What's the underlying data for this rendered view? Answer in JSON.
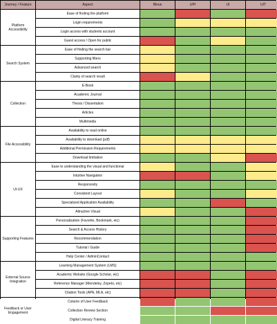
{
  "colors": {
    "G": "#93c572",
    "Y": "#fdeb8c",
    "R": "#d9534f",
    "header": "#c9a8a8"
  },
  "headers": [
    "Journey / Feature",
    "Aspect",
    "Binus",
    "UPI",
    "UI",
    "UIT"
  ],
  "groups": [
    {
      "name": "Platform Accessibility",
      "rows": [
        {
          "aspect": "Ease of finding the platform",
          "ratings": [
            "G",
            "R",
            "G",
            "R"
          ]
        },
        {
          "aspect": "Login requirements",
          "ratings": [
            "G",
            "Y",
            "Y",
            "Y"
          ]
        },
        {
          "aspect": "Login access with students account",
          "ratings": [
            "G",
            "G",
            "G",
            "G"
          ]
        },
        {
          "aspect": "Guest access / Open for public",
          "ratings": [
            "R",
            "G",
            "Y",
            "G"
          ]
        }
      ]
    },
    {
      "name": "Search System",
      "rows": [
        {
          "aspect": "Ease of finding the search bar",
          "ratings": [
            "Y",
            "G",
            "G",
            "G"
          ]
        },
        {
          "aspect": "Supporting filters",
          "ratings": [
            "Y",
            "G",
            "G",
            "G"
          ]
        },
        {
          "aspect": "Advanced search",
          "ratings": [
            "Y",
            "G",
            "G",
            "G"
          ]
        },
        {
          "aspect": "Clarity of search result",
          "ratings": [
            "R",
            "Y",
            "G",
            "G"
          ]
        }
      ]
    },
    {
      "name": "Collection",
      "rows": [
        {
          "aspect": "E-Book",
          "ratings": [
            "G",
            "G",
            "G",
            "G"
          ]
        },
        {
          "aspect": "Academic Journal",
          "ratings": [
            "G",
            "G",
            "G",
            "G"
          ]
        },
        {
          "aspect": "Thesis / Dissertation",
          "ratings": [
            "G",
            "G",
            "G",
            "G"
          ]
        },
        {
          "aspect": "Articles",
          "ratings": [
            "G",
            "G",
            "G",
            "G"
          ]
        },
        {
          "aspect": "Multimedia",
          "ratings": [
            "G",
            "G",
            "G",
            "G"
          ]
        }
      ]
    },
    {
      "name": "File Accessibility",
      "rows": [
        {
          "aspect": "Availability to read online",
          "ratings": [
            "G",
            "G",
            "G",
            "G"
          ]
        },
        {
          "aspect": "Availability to download (pdf)",
          "ratings": [
            "Y",
            "Y",
            "Y",
            "Y"
          ]
        },
        {
          "aspect": "Additional Permission Requirements",
          "ratings": [
            "Y",
            "Y",
            "Y",
            "Y"
          ]
        },
        {
          "aspect": "Download limitation",
          "ratings": [
            "G",
            "G",
            "Y",
            "R"
          ]
        }
      ]
    },
    {
      "name": "UI-UX",
      "rows": [
        {
          "aspect": "Ease to understanding the visual and functional",
          "ratings": [
            "Y",
            "G",
            "G",
            "Y"
          ]
        },
        {
          "aspect": "Intuitive Navigation",
          "ratings": [
            "R",
            "R",
            "G",
            "Y"
          ]
        },
        {
          "aspect": "Responsivity",
          "ratings": [
            "G",
            "G",
            "G",
            "G"
          ]
        },
        {
          "aspect": "Consistent Layout",
          "ratings": [
            "Y",
            "G",
            "G",
            "Y"
          ]
        },
        {
          "aspect": "Specialized Application Availability",
          "ratings": [
            "G",
            "G",
            "R",
            "G"
          ]
        },
        {
          "aspect": "Attractive Visual",
          "ratings": [
            "Y",
            "G",
            "G",
            "R"
          ]
        }
      ]
    },
    {
      "name": "Supporting Features",
      "rows": [
        {
          "aspect": "Personalization (Favorite, Bookmark, etc)",
          "ratings": [
            "G",
            "G",
            "G",
            "R"
          ]
        },
        {
          "aspect": "Search & Access History",
          "ratings": [
            "G",
            "G",
            "G",
            "R"
          ]
        },
        {
          "aspect": "Recommendation",
          "ratings": [
            "G",
            "G",
            "G",
            "R"
          ]
        },
        {
          "aspect": "Tutorial / Guide",
          "ratings": [
            "G",
            "G",
            "G",
            "R"
          ]
        },
        {
          "aspect": "Help Center / AdminContact",
          "ratings": [
            "G",
            "G",
            "G",
            "G"
          ]
        }
      ]
    },
    {
      "name": "External Source Integration",
      "rows": [
        {
          "aspect": "Learning Management System (LMS)",
          "ratings": [
            "G",
            "G",
            "G",
            "G"
          ]
        },
        {
          "aspect": "Academic Website (Google Scholar, etc)",
          "ratings": [
            "R",
            "R",
            "G",
            "R"
          ]
        },
        {
          "aspect": "Reference Manager (Mendeley, Zopeto, etc)",
          "ratings": [
            "R",
            "R",
            "G",
            "R"
          ]
        },
        {
          "aspect": "Citation Tools (APA, MLA, etc)",
          "ratings": [
            "R",
            "R",
            "G",
            "R"
          ]
        }
      ]
    },
    {
      "name": "Feedback or User Engagement",
      "rows": [
        {
          "aspect": "Column of User Feedback",
          "ratings": [
            "R",
            "G",
            "G",
            "R"
          ]
        },
        {
          "aspect": "Collection Review Section",
          "ratings": [
            "G",
            "G",
            "R",
            "R"
          ]
        },
        {
          "aspect": "Digital Literacy Training",
          "ratings": [
            "G",
            "G",
            "G",
            "G"
          ]
        }
      ]
    }
  ]
}
